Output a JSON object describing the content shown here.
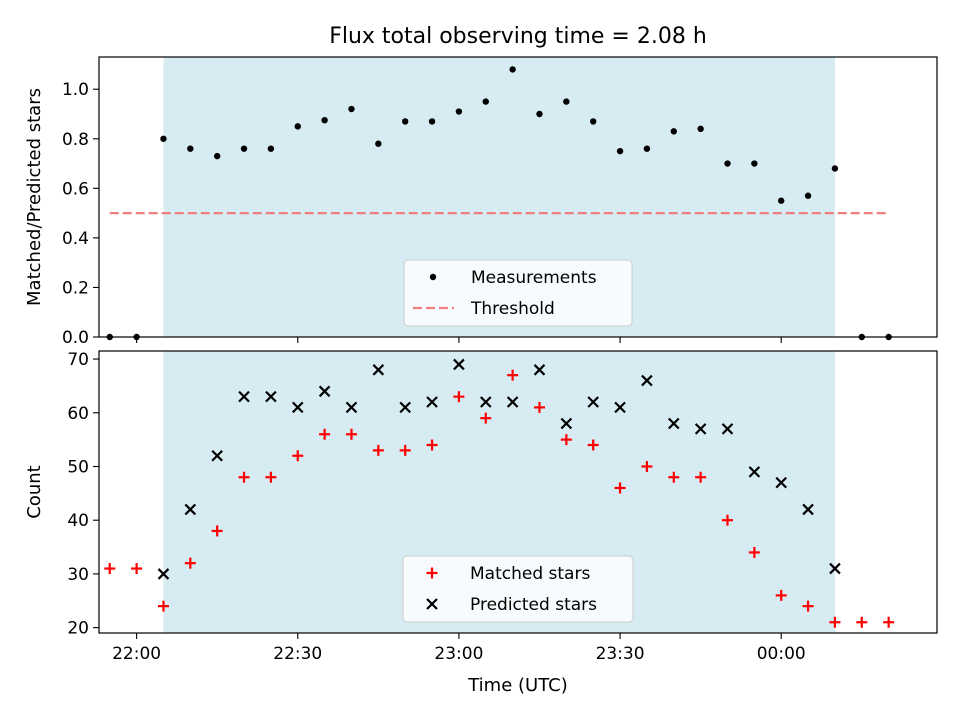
{
  "figure": {
    "title": "Flux total observing time = 2.08 h",
    "xlabel": "Time (UTC)",
    "x_tick_labels": [
      "22:00",
      "22:30",
      "23:00",
      "23:30",
      "00:00"
    ]
  },
  "colors": {
    "shade": "#add8e6",
    "measurements": "#000000",
    "threshold": "#f08080",
    "matched": "#ff0000",
    "predicted": "#000000"
  },
  "chart_data": [
    {
      "type": "scatter",
      "ylabel": "Matched/Predicted stars",
      "xlim": [
        "21:53",
        "00:29"
      ],
      "ylim": [
        0,
        1.13
      ],
      "y_ticks": [
        0.0,
        0.2,
        0.4,
        0.6,
        0.8,
        1.0
      ],
      "y_tick_labels": [
        "0.0",
        "0.2",
        "0.4",
        "0.6",
        "0.8",
        "1.0"
      ],
      "x_ticks": [
        "22:00",
        "22:30",
        "23:00",
        "23:30",
        "00:00"
      ],
      "shaded_interval": [
        "22:05",
        "00:10"
      ],
      "legend": {
        "placement": "lower center",
        "entries": [
          "Measurements",
          "Threshold"
        ]
      },
      "series": [
        {
          "name": "Measurements",
          "marker": "dot",
          "x": [
            "21:55",
            "22:00",
            "22:05",
            "22:10",
            "22:15",
            "22:20",
            "22:25",
            "22:30",
            "22:35",
            "22:40",
            "22:45",
            "22:50",
            "22:55",
            "23:00",
            "23:05",
            "23:10",
            "23:15",
            "23:20",
            "23:25",
            "23:30",
            "23:35",
            "23:40",
            "23:45",
            "23:50",
            "23:55",
            "00:00",
            "00:05",
            "00:10",
            "00:15",
            "00:20"
          ],
          "y": [
            0.0,
            0.0,
            0.8,
            0.76,
            0.73,
            0.76,
            0.76,
            0.85,
            0.875,
            0.92,
            0.78,
            0.87,
            0.87,
            0.91,
            0.95,
            1.08,
            0.9,
            0.95,
            0.87,
            0.75,
            0.76,
            0.83,
            0.84,
            0.7,
            0.7,
            0.55,
            0.57,
            0.68,
            0.0,
            0.0
          ]
        },
        {
          "name": "Threshold",
          "line_style": "dashed",
          "x": [
            "21:55",
            "00:20"
          ],
          "y": [
            0.5,
            0.5
          ]
        }
      ]
    },
    {
      "type": "scatter",
      "ylabel": "Count",
      "xlim": [
        "21:53",
        "00:29"
      ],
      "ylim": [
        19,
        71.5
      ],
      "y_ticks": [
        20,
        30,
        40,
        50,
        60,
        70
      ],
      "y_tick_labels": [
        "20",
        "30",
        "40",
        "50",
        "60",
        "70"
      ],
      "x_ticks": [
        "22:00",
        "22:30",
        "23:00",
        "23:30",
        "00:00"
      ],
      "shaded_interval": [
        "22:05",
        "00:10"
      ],
      "legend": {
        "placement": "lower center",
        "entries": [
          "Matched stars",
          "Predicted stars"
        ]
      },
      "series": [
        {
          "name": "Matched stars",
          "marker": "plus",
          "x": [
            "21:55",
            "22:00",
            "22:05",
            "22:10",
            "22:15",
            "22:20",
            "22:25",
            "22:30",
            "22:35",
            "22:40",
            "22:45",
            "22:50",
            "22:55",
            "23:00",
            "23:05",
            "23:10",
            "23:15",
            "23:20",
            "23:25",
            "23:30",
            "23:35",
            "23:40",
            "23:45",
            "23:50",
            "23:55",
            "00:00",
            "00:05",
            "00:10",
            "00:15",
            "00:20"
          ],
          "y": [
            31,
            31,
            24,
            32,
            38,
            48,
            48,
            52,
            56,
            56,
            53,
            53,
            54,
            63,
            59,
            67,
            61,
            55,
            54,
            46,
            50,
            48,
            48,
            40,
            34,
            26,
            24,
            21,
            21,
            21
          ]
        },
        {
          "name": "Predicted stars",
          "marker": "x",
          "x": [
            "22:05",
            "22:10",
            "22:15",
            "22:20",
            "22:25",
            "22:30",
            "22:35",
            "22:40",
            "22:45",
            "22:50",
            "22:55",
            "23:00",
            "23:05",
            "23:10",
            "23:15",
            "23:20",
            "23:25",
            "23:30",
            "23:35",
            "23:40",
            "23:45",
            "23:50",
            "23:55",
            "00:00",
            "00:05",
            "00:10"
          ],
          "y": [
            30,
            42,
            52,
            63,
            63,
            61,
            64,
            61,
            68,
            61,
            62,
            69,
            62,
            62,
            68,
            58,
            62,
            61,
            66,
            58,
            57,
            57,
            49,
            47,
            42,
            31
          ]
        }
      ]
    }
  ]
}
